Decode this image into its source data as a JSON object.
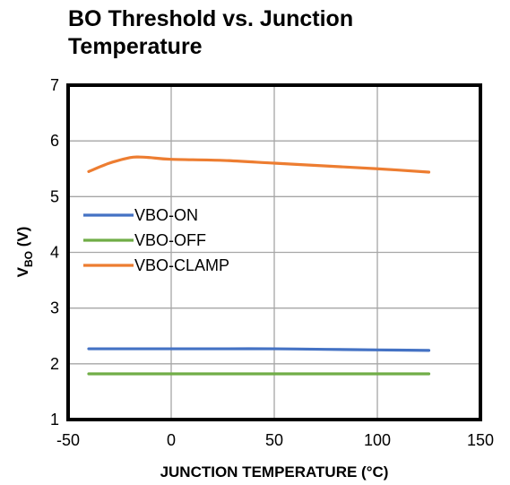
{
  "chart_data": {
    "type": "line",
    "title": "BO Threshold vs. Junction Temperature",
    "xlabel": "JUNCTION TEMPERATURE (°C)",
    "ylabel": {
      "main": "V",
      "subscript": "BO",
      "suffix": " (V)"
    },
    "xlim": [
      -50,
      150
    ],
    "ylim": [
      1,
      7
    ],
    "xticks": [
      -50,
      0,
      50,
      100,
      150
    ],
    "yticks": [
      1,
      2,
      3,
      4,
      5,
      6,
      7
    ],
    "grid": true,
    "legend_position": "left-middle",
    "series": [
      {
        "name": "VBO-ON",
        "color": "#4472C4",
        "x": [
          -40,
          -25,
          0,
          25,
          50,
          75,
          100,
          125
        ],
        "y": [
          2.27,
          2.27,
          2.27,
          2.27,
          2.27,
          2.26,
          2.25,
          2.24
        ]
      },
      {
        "name": "VBO-OFF",
        "color": "#70AD47",
        "x": [
          -40,
          -25,
          0,
          25,
          50,
          75,
          100,
          125
        ],
        "y": [
          1.82,
          1.82,
          1.82,
          1.82,
          1.82,
          1.82,
          1.82,
          1.82
        ]
      },
      {
        "name": "VBO-CLAMP",
        "color": "#ED7D31",
        "x": [
          -40,
          -30,
          -20,
          -15,
          -10,
          0,
          25,
          50,
          75,
          100,
          125
        ],
        "y": [
          5.45,
          5.6,
          5.7,
          5.71,
          5.7,
          5.67,
          5.65,
          5.6,
          5.55,
          5.5,
          5.44
        ]
      }
    ]
  }
}
